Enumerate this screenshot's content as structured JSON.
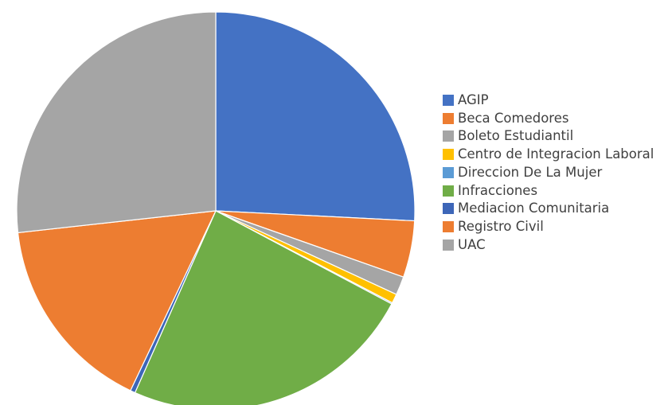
{
  "chart_data": {
    "type": "pie",
    "categories": [
      "AGIP",
      "Beca Comedores",
      "Boleto Estudiantil",
      "Centro de Integracion Laboral",
      "Direccion De La Mujer",
      "Infracciones",
      "Mediacion Comunitaria",
      "Registro Civil",
      "UAC"
    ],
    "values": [
      25.8,
      4.6,
      1.5,
      0.75,
      0.1,
      23.9,
      0.4,
      16.2,
      26.75
    ],
    "colors": [
      "#4472c4",
      "#ed7d31",
      "#a5a5a5",
      "#ffc000",
      "#5b9bd5",
      "#70ad47",
      "#3d66b8",
      "#ed7d31",
      "#a5a5a5"
    ],
    "legend": "right"
  }
}
